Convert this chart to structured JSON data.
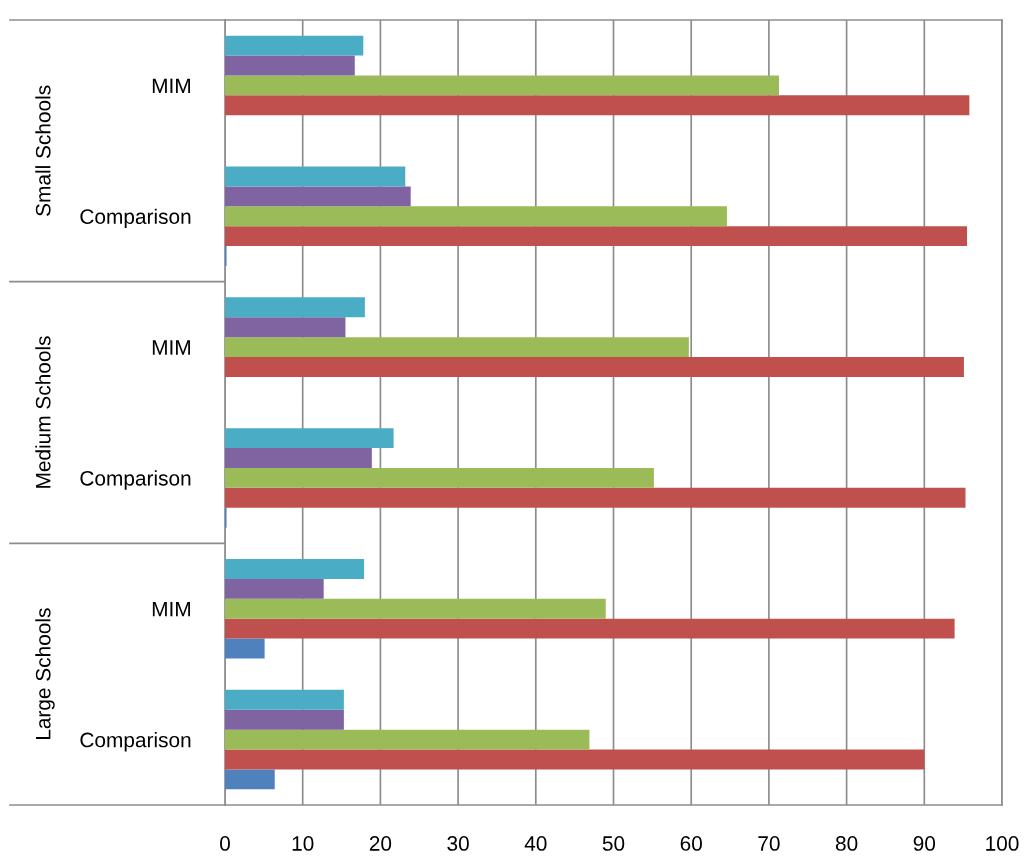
{
  "chart_data": {
    "type": "bar",
    "orientation": "horizontal",
    "categories": [
      "MIM",
      "Comparison",
      "MIM",
      "Comparison",
      "MIM",
      "Comparison"
    ],
    "series": [
      {
        "color": "#4f81bd",
        "values": [
          0,
          0.2,
          0,
          0.2,
          5.1,
          6.4
        ]
      },
      {
        "color": "#c0504d",
        "values": [
          95.8,
          95.5,
          95.1,
          95.3,
          93.9,
          90.0
        ]
      },
      {
        "color": "#9bbb59",
        "values": [
          71.3,
          64.6,
          59.7,
          55.2,
          49.0,
          46.9
        ]
      },
      {
        "color": "#8064a2",
        "values": [
          16.7,
          23.9,
          15.5,
          18.9,
          12.7,
          15.3
        ]
      },
      {
        "color": "#4bacc6",
        "values": [
          17.8,
          23.2,
          18.0,
          21.7,
          17.9,
          15.3
        ]
      }
    ],
    "xlim": [
      0,
      100
    ],
    "xticks": [
      0,
      10,
      20,
      30,
      40,
      50,
      60,
      70,
      80,
      90,
      100
    ],
    "grid": "x",
    "legend": false,
    "annotations": [
      "Small Schools",
      "Medium Schools",
      "Large Schools"
    ]
  }
}
